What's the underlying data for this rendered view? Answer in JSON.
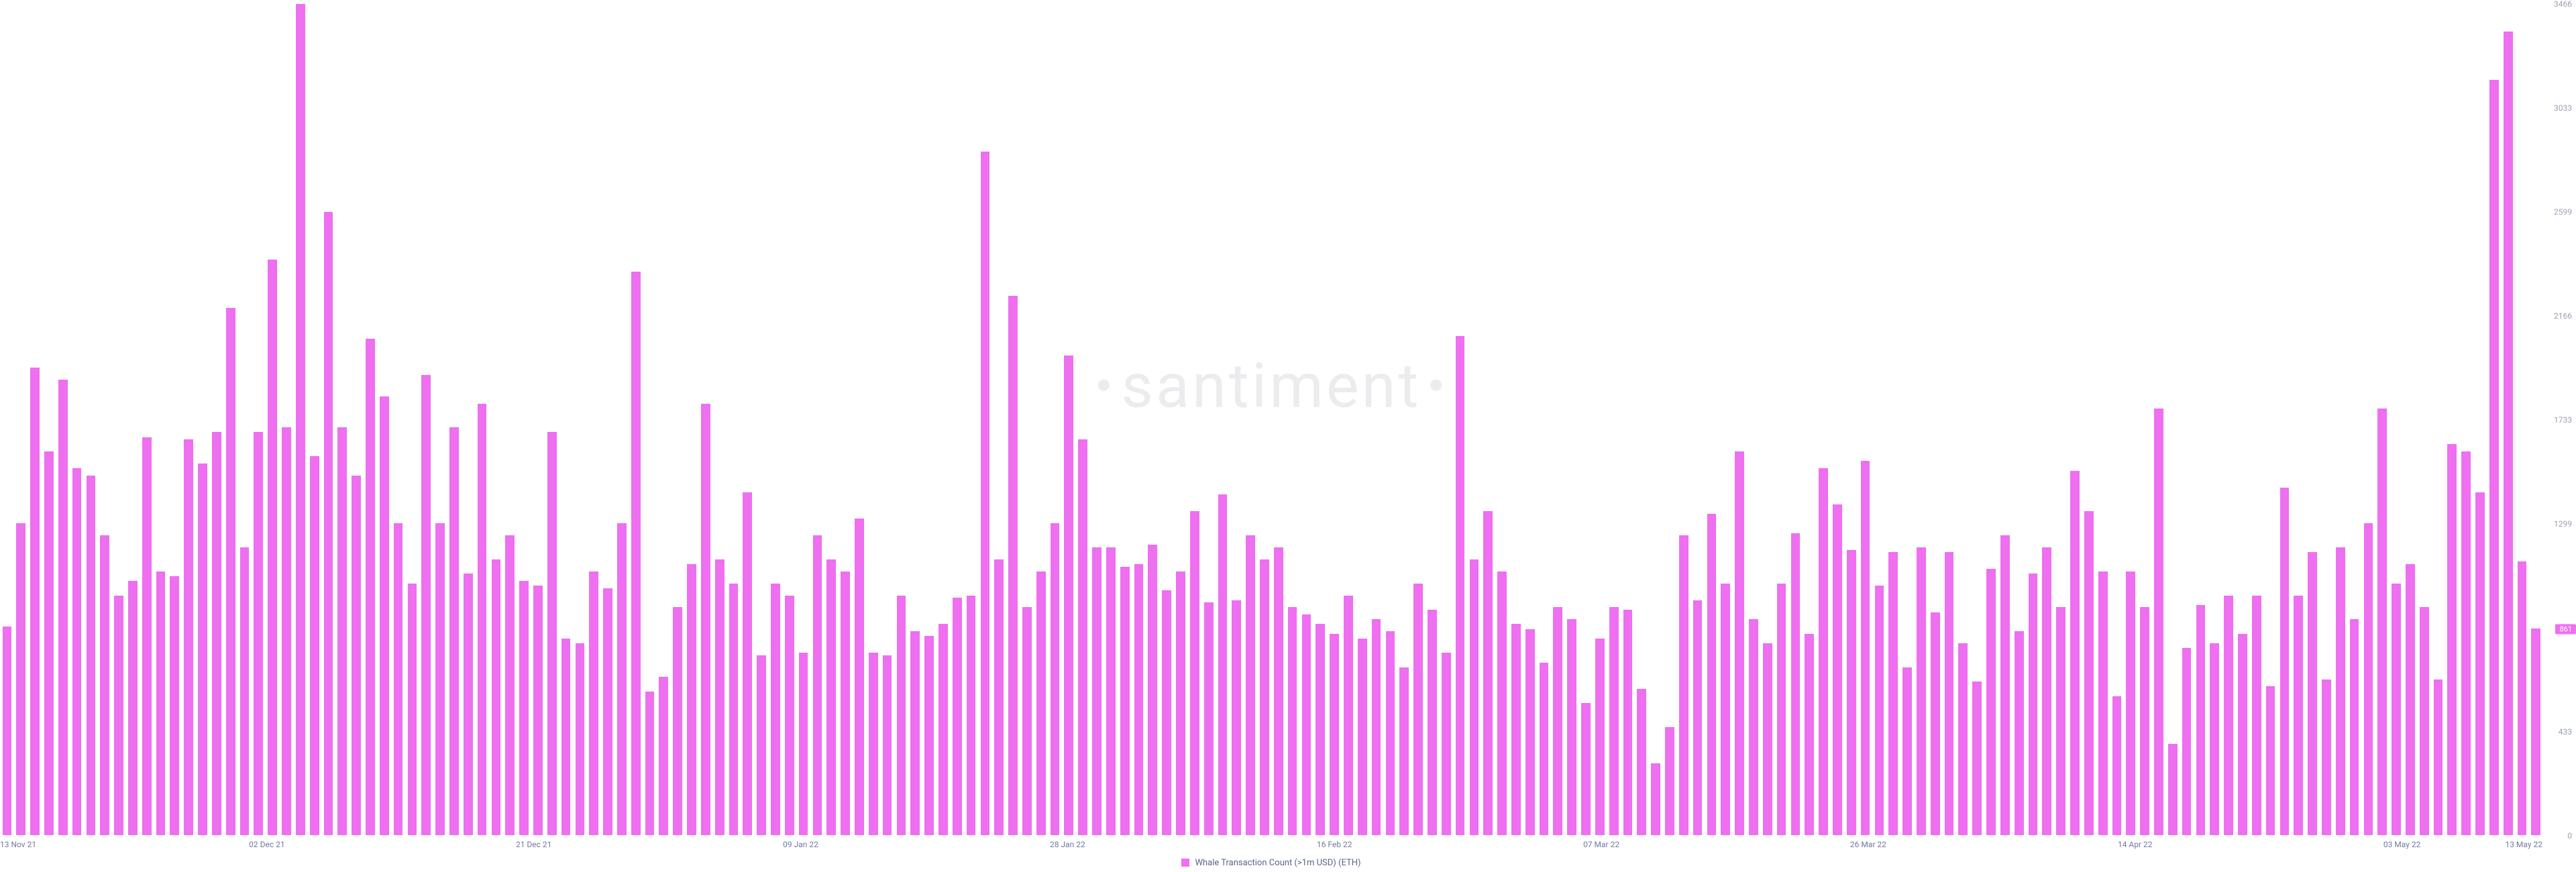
{
  "chart": {
    "type": "bar",
    "legend_label": "Whale Transaction Count (>1m USD) (ETH)",
    "watermark_text": "santiment",
    "bar_color": "#ee6ff0",
    "bar_color_light": "#f7a8f8",
    "background_color": "#ffffff",
    "axis_label_color": "#9aa0b5",
    "x_label_color": "#6f7aa0",
    "legend_text_color": "#5c6584",
    "watermark_color": "rgba(120,120,140,0.14)",
    "axis_fontsize": 12,
    "legend_fontsize": 13,
    "watermark_fontsize": 92,
    "ylim": [
      0,
      3466
    ],
    "y_ticks": [
      0,
      433,
      861,
      1299,
      1733,
      2166,
      2599,
      3033,
      3466
    ],
    "current_value": 861,
    "x_ticks": [
      {
        "index": 0,
        "label": "13 Nov 21",
        "edge": "left"
      },
      {
        "index": 19,
        "label": "02 Dec 21"
      },
      {
        "index": 38,
        "label": "21 Dec 21"
      },
      {
        "index": 57,
        "label": "09 Jan 22"
      },
      {
        "index": 76,
        "label": "28 Jan 22"
      },
      {
        "index": 95,
        "label": "16 Feb 22"
      },
      {
        "index": 114,
        "label": "07 Mar 22"
      },
      {
        "index": 133,
        "label": "26 Mar 22"
      },
      {
        "index": 152,
        "label": "14 Apr 22"
      },
      {
        "index": 171,
        "label": "03 May 22"
      },
      {
        "index": 181,
        "label": "13 May 22",
        "edge": "right"
      }
    ],
    "values": [
      870,
      1300,
      1950,
      1600,
      1900,
      1530,
      1500,
      1250,
      1000,
      1060,
      1660,
      1100,
      1080,
      1650,
      1550,
      1680,
      2200,
      1200,
      1680,
      2400,
      1700,
      3500,
      1580,
      2600,
      1700,
      1500,
      2070,
      1830,
      1300,
      1050,
      1920,
      1300,
      1700,
      1090,
      1800,
      1150,
      1250,
      1060,
      1040,
      1680,
      820,
      800,
      1100,
      1030,
      1300,
      2350,
      600,
      660,
      950,
      1130,
      1800,
      1150,
      1050,
      1430,
      750,
      1050,
      1000,
      760,
      1250,
      1150,
      1100,
      1320,
      760,
      750,
      1000,
      850,
      830,
      880,
      990,
      1000,
      2850,
      1150,
      2250,
      950,
      1100,
      1300,
      2000,
      1650,
      1200,
      1200,
      1120,
      1130,
      1210,
      1020,
      1100,
      1350,
      970,
      1420,
      980,
      1250,
      1150,
      1200,
      950,
      920,
      880,
      840,
      1000,
      820,
      900,
      850,
      700,
      1050,
      940,
      760,
      2080,
      1150,
      1350,
      1100,
      880,
      860,
      720,
      950,
      900,
      550,
      820,
      950,
      940,
      610,
      300,
      450,
      1250,
      980,
      1340,
      1050,
      1600,
      900,
      800,
      1050,
      1260,
      840,
      1530,
      1380,
      1190,
      1560,
      1040,
      1180,
      700,
      1200,
      930,
      1180,
      800,
      640,
      1110,
      1250,
      850,
      1090,
      1200,
      950,
      1520,
      1350,
      1100,
      580,
      1100,
      950,
      1780,
      380,
      780,
      960,
      800,
      1000,
      840,
      1000,
      620,
      1450,
      1000,
      1180,
      650,
      1200,
      900,
      1300,
      1780,
      1050,
      1130,
      950,
      650,
      1630,
      1600,
      1430,
      3150,
      3350,
      1140,
      861
    ]
  }
}
